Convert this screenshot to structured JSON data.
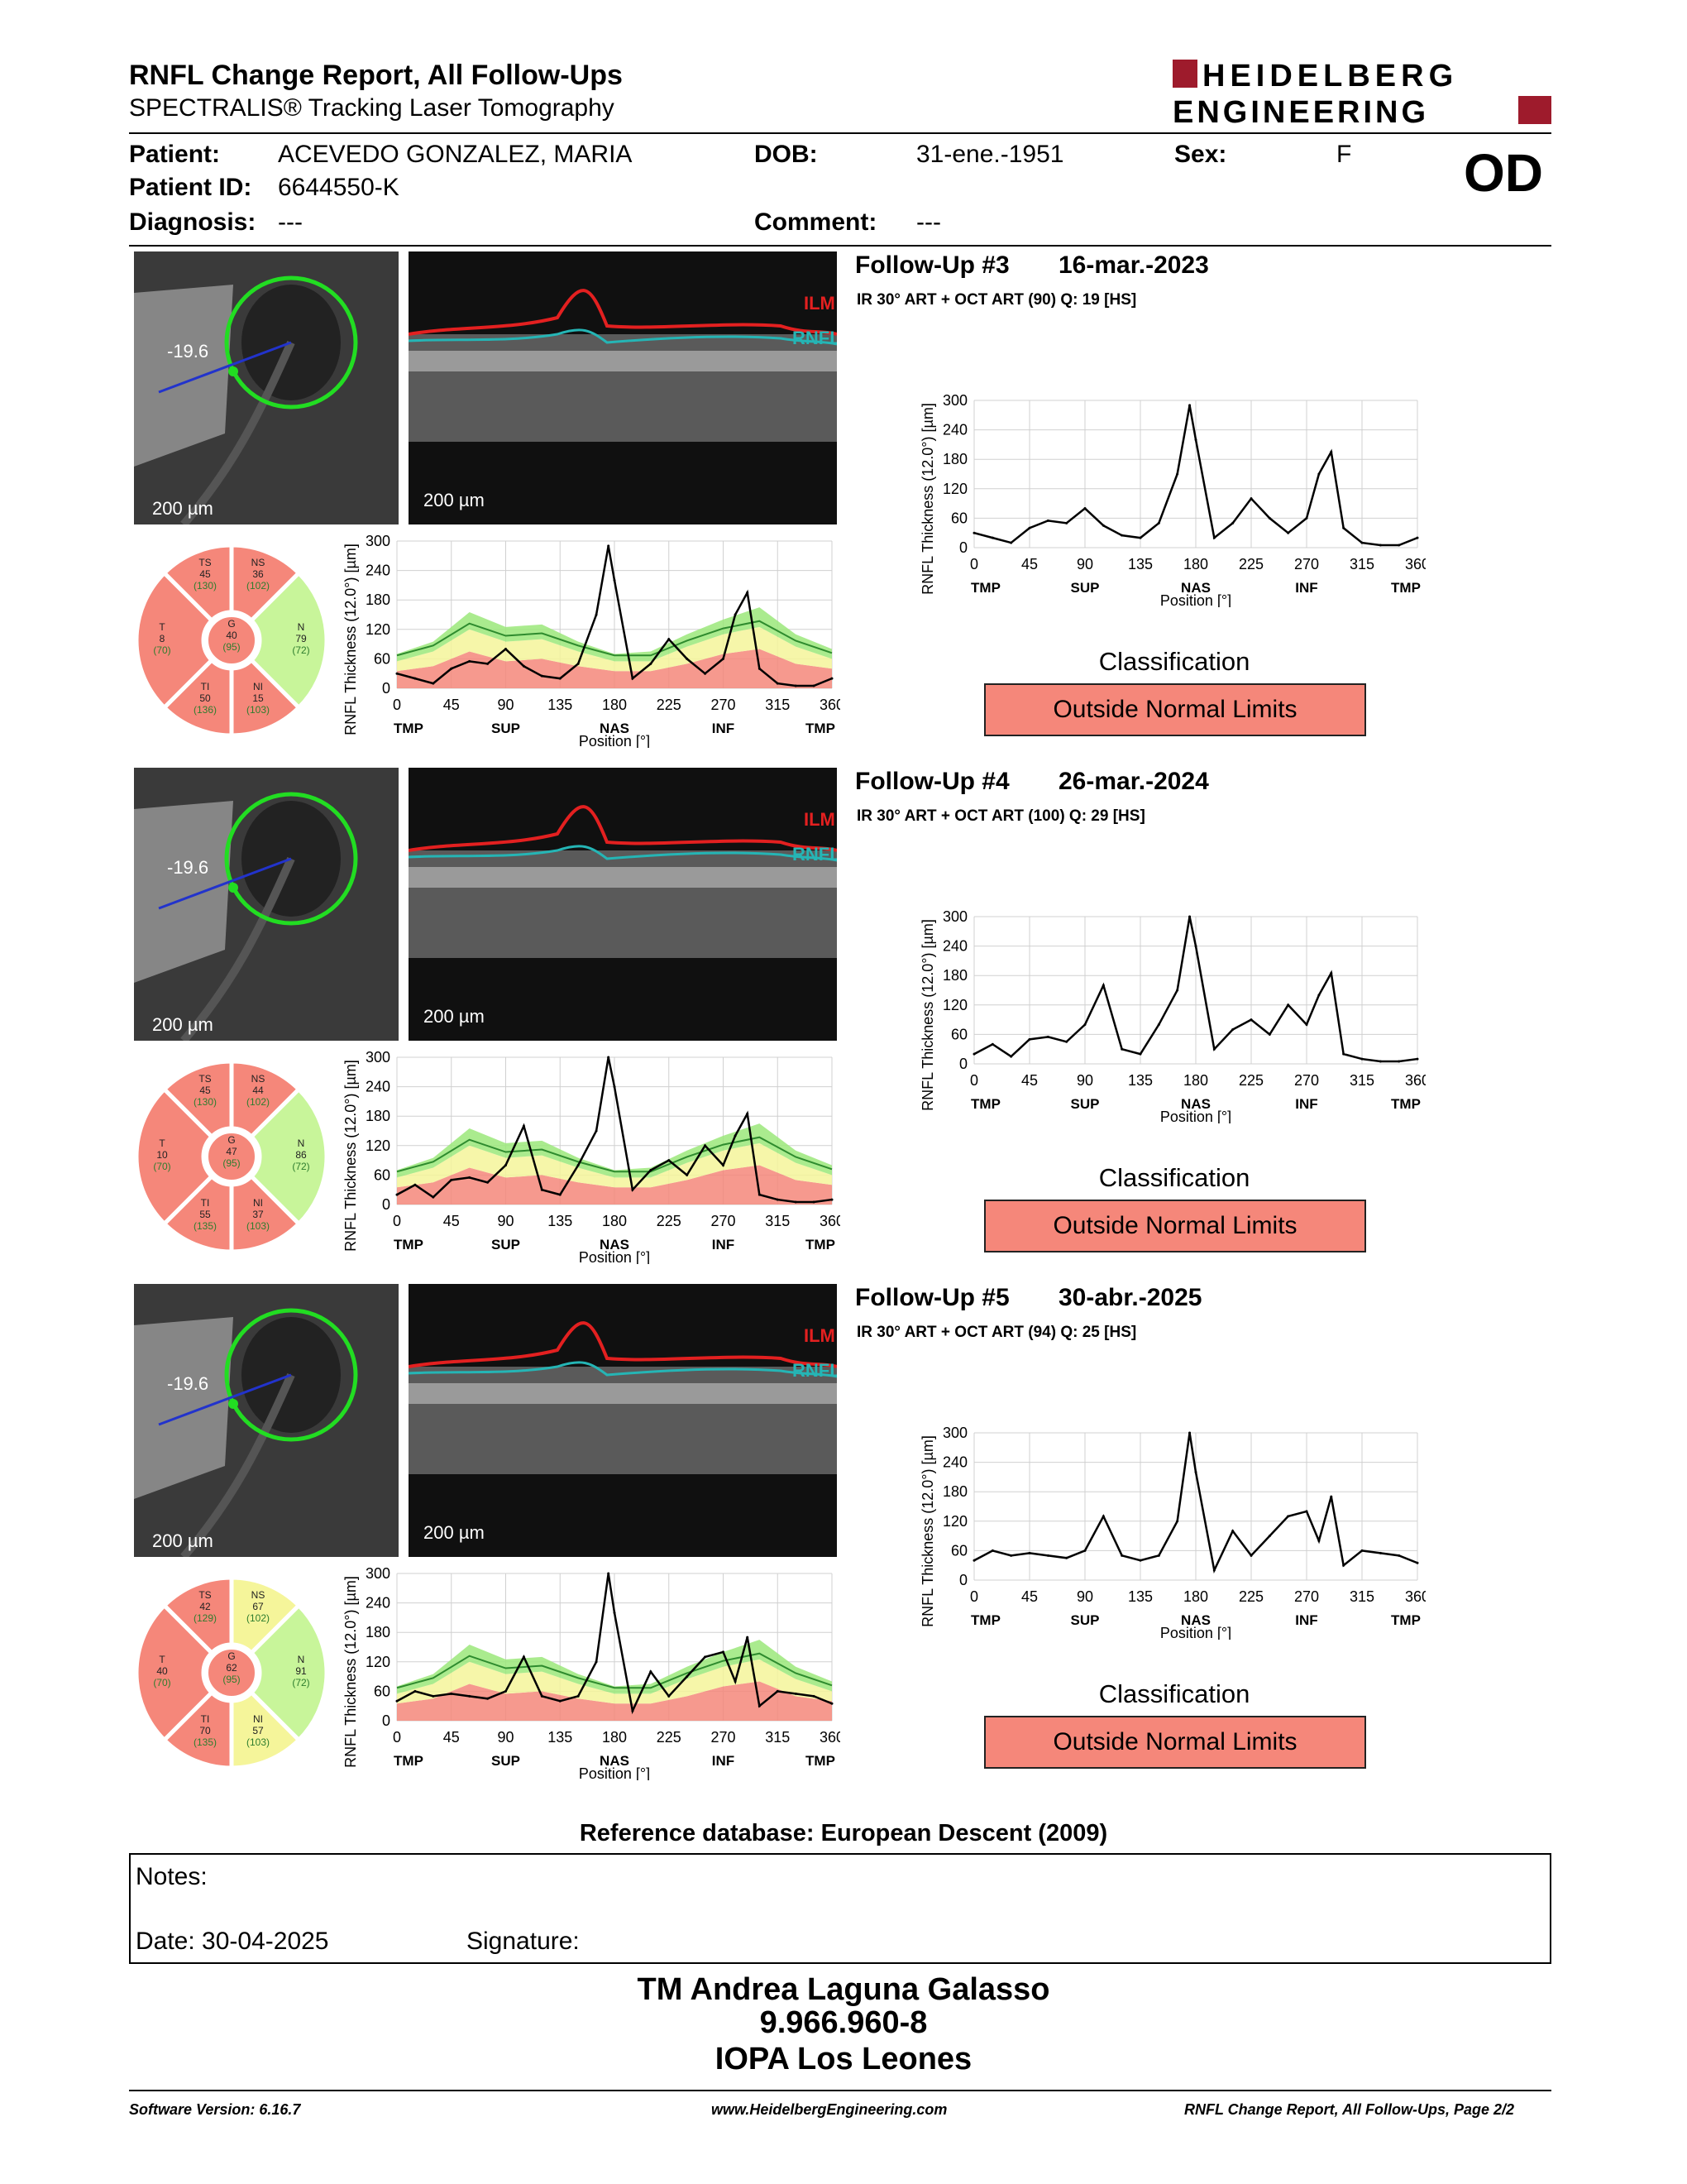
{
  "header": {
    "title": "RNFL Change Report, All Follow-Ups",
    "subtitle": "SPECTRALIS® Tracking Laser Tomography",
    "logo_line1": "HEIDELBERG",
    "logo_line2": "ENGINEERING",
    "eye": "OD"
  },
  "patient": {
    "patient_label": "Patient:",
    "patient_value": "ACEVEDO GONZALEZ, MARIA",
    "dob_label": "DOB:",
    "dob_value": "31-ene.-1951",
    "sex_label": "Sex:",
    "sex_value": "F",
    "id_label": "Patient ID:",
    "id_value": "6644550-K",
    "diagnosis_label": "Diagnosis:",
    "diagnosis_value": "---",
    "comment_label": "Comment:",
    "comment_value": "---"
  },
  "colors": {
    "outside": "#f5877a",
    "borderline": "#f5f59a",
    "within": "#c8f59a",
    "logo_red": "#9e1b2c"
  },
  "labels": {
    "scale": "200 µm",
    "ilm": "ILM",
    "rnfl": "RNFL",
    "y_axis": "RNFL Thickness (12.0°) [µm]",
    "x_axis": "Position [°]",
    "y_ticks": [
      "300",
      "240",
      "180",
      "120",
      "60",
      "0"
    ],
    "x_ticks": [
      "0",
      "45",
      "90",
      "135",
      "180",
      "225",
      "270",
      "315",
      "360"
    ],
    "sectors_axis": [
      "TMP",
      "SUP",
      "NAS",
      "INF",
      "TMP"
    ],
    "classification_label": "Classification"
  },
  "followups": [
    {
      "title": "Follow-Up #3",
      "date": "16-mar.-2023",
      "scan": "IR 30° ART + OCT ART (90) Q: 19 [HS]",
      "angle": "-19.6",
      "classification": "Outside Normal Limits",
      "sectors": {
        "TS": {
          "name": "TS",
          "value": "45",
          "ref": "(130)",
          "status": "outside"
        },
        "NS": {
          "name": "NS",
          "value": "36",
          "ref": "(102)",
          "status": "outside"
        },
        "T": {
          "name": "T",
          "value": "8",
          "ref": "(70)",
          "status": "outside"
        },
        "G": {
          "name": "G",
          "value": "40",
          "ref": "(95)",
          "status": "outside"
        },
        "N": {
          "name": "N",
          "value": "79",
          "ref": "(72)",
          "status": "within"
        },
        "TI": {
          "name": "TI",
          "value": "50",
          "ref": "(136)",
          "status": "outside"
        },
        "NI": {
          "name": "NI",
          "value": "15",
          "ref": "(103)",
          "status": "outside"
        }
      },
      "chart_data": {
        "type": "line",
        "xlabel": "Position [°]",
        "ylabel": "RNFL Thickness (12.0°) [µm]",
        "xlim": [
          0,
          360
        ],
        "ylim": [
          0,
          300
        ],
        "x": [
          0,
          15,
          30,
          45,
          60,
          75,
          90,
          105,
          120,
          135,
          150,
          165,
          175,
          180,
          195,
          210,
          225,
          240,
          255,
          270,
          280,
          290,
          300,
          315,
          330,
          345,
          360
        ],
        "series": [
          {
            "values": [
              30,
              20,
              10,
              40,
              55,
              50,
              80,
              45,
              25,
              20,
              50,
              150,
              290,
              220,
              20,
              50,
              100,
              60,
              30,
              60,
              150,
              195,
              40,
              10,
              5,
              5,
              20
            ]
          }
        ]
      }
    },
    {
      "title": "Follow-Up #4",
      "date": "26-mar.-2024",
      "scan": "IR 30° ART + OCT ART (100) Q: 29 [HS]",
      "angle": "-19.6",
      "classification": "Outside Normal Limits",
      "sectors": {
        "TS": {
          "name": "TS",
          "value": "45",
          "ref": "(130)",
          "status": "outside"
        },
        "NS": {
          "name": "NS",
          "value": "44",
          "ref": "(102)",
          "status": "outside"
        },
        "T": {
          "name": "T",
          "value": "10",
          "ref": "(70)",
          "status": "outside"
        },
        "G": {
          "name": "G",
          "value": "47",
          "ref": "(95)",
          "status": "outside"
        },
        "N": {
          "name": "N",
          "value": "86",
          "ref": "(72)",
          "status": "within"
        },
        "TI": {
          "name": "TI",
          "value": "55",
          "ref": "(135)",
          "status": "outside"
        },
        "NI": {
          "name": "NI",
          "value": "37",
          "ref": "(103)",
          "status": "outside"
        }
      },
      "chart_data": {
        "type": "line",
        "xlabel": "Position [°]",
        "ylabel": "RNFL Thickness (12.0°) [µm]",
        "xlim": [
          0,
          360
        ],
        "ylim": [
          0,
          300
        ],
        "x": [
          0,
          15,
          30,
          45,
          60,
          75,
          90,
          105,
          120,
          135,
          150,
          165,
          175,
          180,
          195,
          210,
          225,
          240,
          255,
          270,
          280,
          290,
          300,
          315,
          330,
          345,
          360
        ],
        "series": [
          {
            "values": [
              20,
              40,
              15,
              50,
              55,
              45,
              80,
              160,
              30,
              20,
              80,
              150,
              300,
              240,
              30,
              70,
              90,
              60,
              120,
              80,
              140,
              185,
              20,
              10,
              5,
              5,
              10
            ]
          }
        ]
      }
    },
    {
      "title": "Follow-Up #5",
      "date": "30-abr.-2025",
      "scan": "IR 30° ART + OCT ART (94) Q: 25 [HS]",
      "angle": "-19.6",
      "classification": "Outside Normal Limits",
      "sectors": {
        "TS": {
          "name": "TS",
          "value": "42",
          "ref": "(129)",
          "status": "outside"
        },
        "NS": {
          "name": "NS",
          "value": "67",
          "ref": "(102)",
          "status": "borderline"
        },
        "T": {
          "name": "T",
          "value": "40",
          "ref": "(70)",
          "status": "outside"
        },
        "G": {
          "name": "G",
          "value": "62",
          "ref": "(95)",
          "status": "outside"
        },
        "N": {
          "name": "N",
          "value": "91",
          "ref": "(72)",
          "status": "within"
        },
        "TI": {
          "name": "TI",
          "value": "70",
          "ref": "(135)",
          "status": "outside"
        },
        "NI": {
          "name": "NI",
          "value": "57",
          "ref": "(103)",
          "status": "borderline"
        }
      },
      "chart_data": {
        "type": "line",
        "xlabel": "Position [°]",
        "ylabel": "RNFL Thickness (12.0°) [µm]",
        "xlim": [
          0,
          360
        ],
        "ylim": [
          0,
          300
        ],
        "x": [
          0,
          15,
          30,
          45,
          60,
          75,
          90,
          105,
          120,
          135,
          150,
          165,
          175,
          180,
          195,
          210,
          225,
          240,
          255,
          270,
          280,
          290,
          300,
          315,
          330,
          345,
          360
        ],
        "series": [
          {
            "values": [
              40,
              60,
              50,
              55,
              50,
              45,
              60,
              130,
              50,
              40,
              50,
              120,
              300,
              220,
              20,
              100,
              50,
              90,
              130,
              140,
              80,
              170,
              30,
              60,
              55,
              50,
              35
            ]
          }
        ]
      }
    }
  ],
  "footer": {
    "reference_db": "Reference database: European Descent (2009)",
    "notes_label": "Notes:",
    "date_label": "Date: 30-04-2025",
    "signature_label": "Signature:",
    "sign_name": "TM Andrea Laguna Galasso",
    "sign_id": "9.966.960-8",
    "sign_place": "IOPA Los Leones",
    "software": "Software Version: 6.16.7",
    "website": "www.HeidelbergEngineering.com",
    "page": "RNFL Change Report, All Follow-Ups, Page 2/2"
  }
}
